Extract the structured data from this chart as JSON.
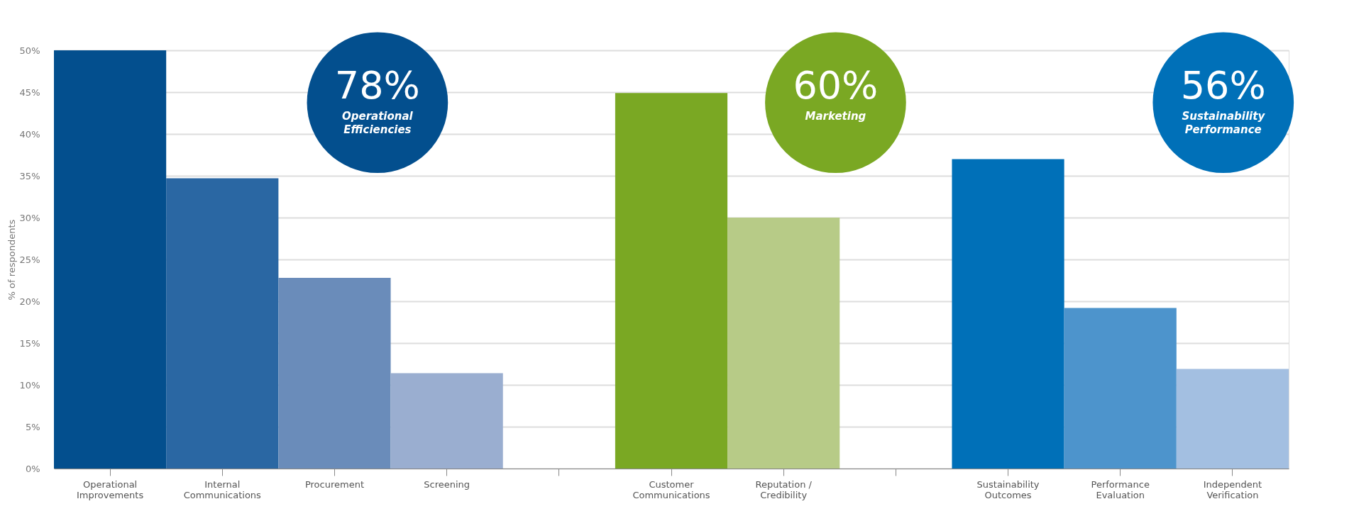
{
  "chart_data": {
    "type": "bar",
    "categories": [
      "Operational Improvements",
      "Internal Communications",
      "Procurement",
      "Screening",
      null,
      "Customer Communications",
      "Reputation / Credibility",
      null,
      "Sustainability Outcomes",
      "Performance Evaluation",
      "Independent Verification"
    ],
    "values": [
      50,
      34.7,
      22.8,
      11.4,
      null,
      44.9,
      30,
      null,
      37,
      19.2,
      11.9
    ],
    "colors": [
      "#034f8e",
      "#2a67a3",
      "#6a8cba",
      "#9aaed0",
      null,
      "#7aa823",
      "#b7cb87",
      null,
      "#0070b8",
      "#4d94cc",
      "#a3bfe1"
    ],
    "ylabel": "% of respondents",
    "ylim": [
      0,
      50
    ],
    "yticks": [
      {
        "value": 0,
        "label": "0%"
      },
      {
        "value": 5,
        "label": "5%"
      },
      {
        "value": 10,
        "label": "10%"
      },
      {
        "value": 15,
        "label": "15%"
      },
      {
        "value": 20,
        "label": "20%"
      },
      {
        "value": 25,
        "label": "25%"
      },
      {
        "value": 30,
        "label": "30%"
      },
      {
        "value": 35,
        "label": "35%"
      },
      {
        "value": 40,
        "label": "40%"
      },
      {
        "value": 45,
        "label": "45%"
      },
      {
        "value": 50,
        "label": "50%"
      }
    ],
    "grid": "y",
    "annotations": [
      "78%",
      "Operational Efficiencies",
      "60%",
      "Marketing",
      "56%",
      "Sustainability Performance"
    ]
  }
}
